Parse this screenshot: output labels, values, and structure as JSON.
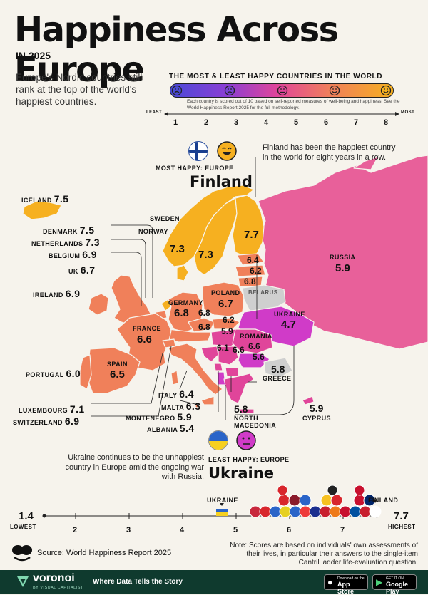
{
  "header": {
    "title": "Happiness Across Europe",
    "subtitle": "IN 2025",
    "intro": "Europe's Nordic countries still rank at the top of the world's happiest countries."
  },
  "legend": {
    "title": "THE MOST & LEAST HAPPY COUNTRIES IN THE WORLD",
    "note": "Each country is scored out of 10 based on self-reported measures of well-being and happiness. See the World Happiness Report 2025 for the full methodology.",
    "least": "LEAST",
    "most": "MOST",
    "ticks": [
      "1",
      "2",
      "3",
      "4",
      "5",
      "6",
      "7",
      "8"
    ]
  },
  "colors": {
    "yellow": "#f6b020",
    "orange": "#f0805a",
    "pink": "#e0459a",
    "magenta": "#d03bc8",
    "russia": "#e8609a",
    "gray": "#cfcfcf"
  },
  "most_happy": {
    "label": "MOST HAPPY: EUROPE",
    "country": "Finland",
    "note": "Finland has been the happiest country in the world for eight years in a row."
  },
  "least_happy": {
    "label": "LEAST HAPPY: EUROPE",
    "country": "Ukraine",
    "note": "Ukraine continues to be the unhappiest country in Europe amid the ongoing war with Russia."
  },
  "countries": {
    "iceland": {
      "name": "ICELAND",
      "score": "7.5"
    },
    "denmark": {
      "name": "DENMARK",
      "score": "7.5"
    },
    "netherlands": {
      "name": "NETHERLANDS",
      "score": "7.3"
    },
    "belgium": {
      "name": "BELGIUM",
      "score": "6.9"
    },
    "uk": {
      "name": "UK",
      "score": "6.7"
    },
    "ireland": {
      "name": "IRELAND",
      "score": "6.9"
    },
    "sweden": {
      "name": "SWEDEN",
      "score": "7.3"
    },
    "norway": {
      "name": "NORWAY",
      "score": "7.3"
    },
    "finland": {
      "name": "Finland",
      "score": "7.7"
    },
    "russia": {
      "name": "RUSSIA",
      "score": "5.9"
    },
    "estonia": {
      "score": "6.4"
    },
    "latvia": {
      "score": "6.2"
    },
    "lithuania": {
      "score": "6.8"
    },
    "belarus": {
      "name": "BELARUS"
    },
    "poland": {
      "name": "POLAND",
      "score": "6.7"
    },
    "germany": {
      "name": "GERMANY",
      "score": "6.8"
    },
    "czech": {
      "score": "6.8"
    },
    "austria": {
      "score": "6.8"
    },
    "slovakia": {
      "score": "6.2"
    },
    "hungary": {
      "score": "5.9"
    },
    "ukraine": {
      "name": "UKRAINE",
      "score": "4.7"
    },
    "france": {
      "name": "FRANCE",
      "score": "6.6"
    },
    "romania": {
      "name": "ROMANIA",
      "score": "6.6"
    },
    "croatia": {
      "score": "6.1"
    },
    "serbia": {
      "score": "6.6"
    },
    "bulgaria": {
      "score": "5.6"
    },
    "spain": {
      "name": "SPAIN",
      "score": "6.5"
    },
    "portugal": {
      "name": "PORTUGAL",
      "score": "6.0"
    },
    "greece": {
      "name": "GREECE",
      "score": "5.8"
    },
    "italy": {
      "name": "ITALY",
      "score": "6.4"
    },
    "malta": {
      "name": "MALTA",
      "score": "6.3"
    },
    "luxembourg": {
      "name": "LUXEMBOURG",
      "score": "7.1"
    },
    "montenegro": {
      "name": "MONTENEGRO",
      "score": "5.9"
    },
    "switzerland": {
      "name": "SWITZERLAND",
      "score": "6.9"
    },
    "albania": {
      "name": "ALBANIA",
      "score": "5.4"
    },
    "north_macedonia": {
      "name": "NORTH MACEDONIA",
      "score": "5.8"
    },
    "cyprus": {
      "name": "CYPRUS",
      "score": "5.9"
    }
  },
  "bottom_scale": {
    "low_value": "1.4",
    "low_label": "LOWEST",
    "high_value": "7.7",
    "high_label": "HIGHEST",
    "ticks": [
      "2",
      "3",
      "4",
      "5",
      "6",
      "7"
    ],
    "ukraine_marker": "UKRAINE",
    "finland_marker": "FINLAND"
  },
  "source": "Source: World Happiness Report 2025",
  "note": "Note: Scores are based on individuals' own assessments of their lives, in particular their answers to the single-item Cantril ladder life-evaluation question.",
  "footer": {
    "brand": "voronoi",
    "brand_sub": "BY VISUAL CAPITALIST",
    "tagline": "Where Data Tells the Story",
    "appstore_small": "Download on the",
    "appstore": "App Store",
    "gplay_small": "GET IT ON",
    "gplay": "Google Play"
  }
}
